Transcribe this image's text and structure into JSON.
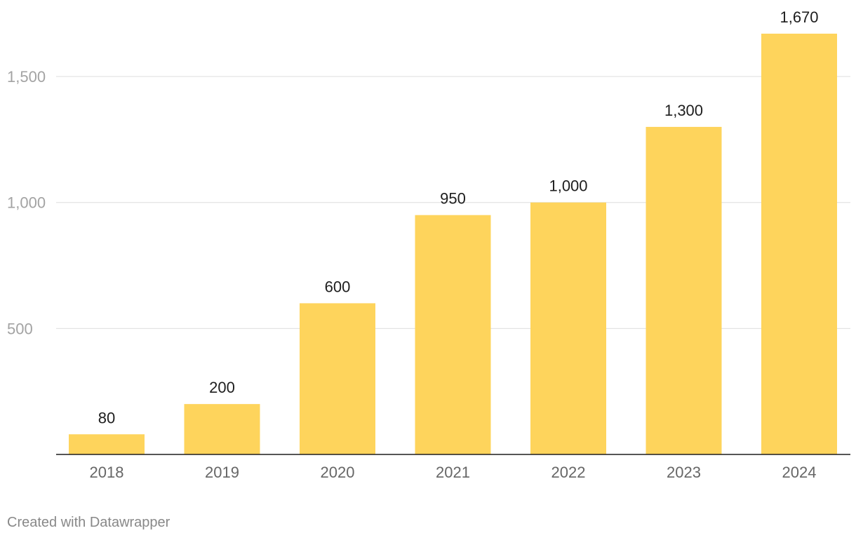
{
  "chart_data": {
    "type": "bar",
    "categories": [
      "2018",
      "2019",
      "2020",
      "2021",
      "2022",
      "2023",
      "2024"
    ],
    "values": [
      80,
      200,
      600,
      950,
      1000,
      1300,
      1670
    ],
    "data_labels": [
      "80",
      "200",
      "600",
      "950",
      "1,000",
      "1,300",
      "1,670"
    ],
    "yticks": [
      500,
      1000,
      1500
    ],
    "ytick_labels": [
      "500",
      "1,000",
      "1,500"
    ],
    "ylim": [
      0,
      1670
    ],
    "grid": true,
    "bar_color": "#fed45c",
    "title": "",
    "xlabel": "",
    "ylabel": ""
  },
  "footer": {
    "credit": "Created with Datawrapper"
  }
}
